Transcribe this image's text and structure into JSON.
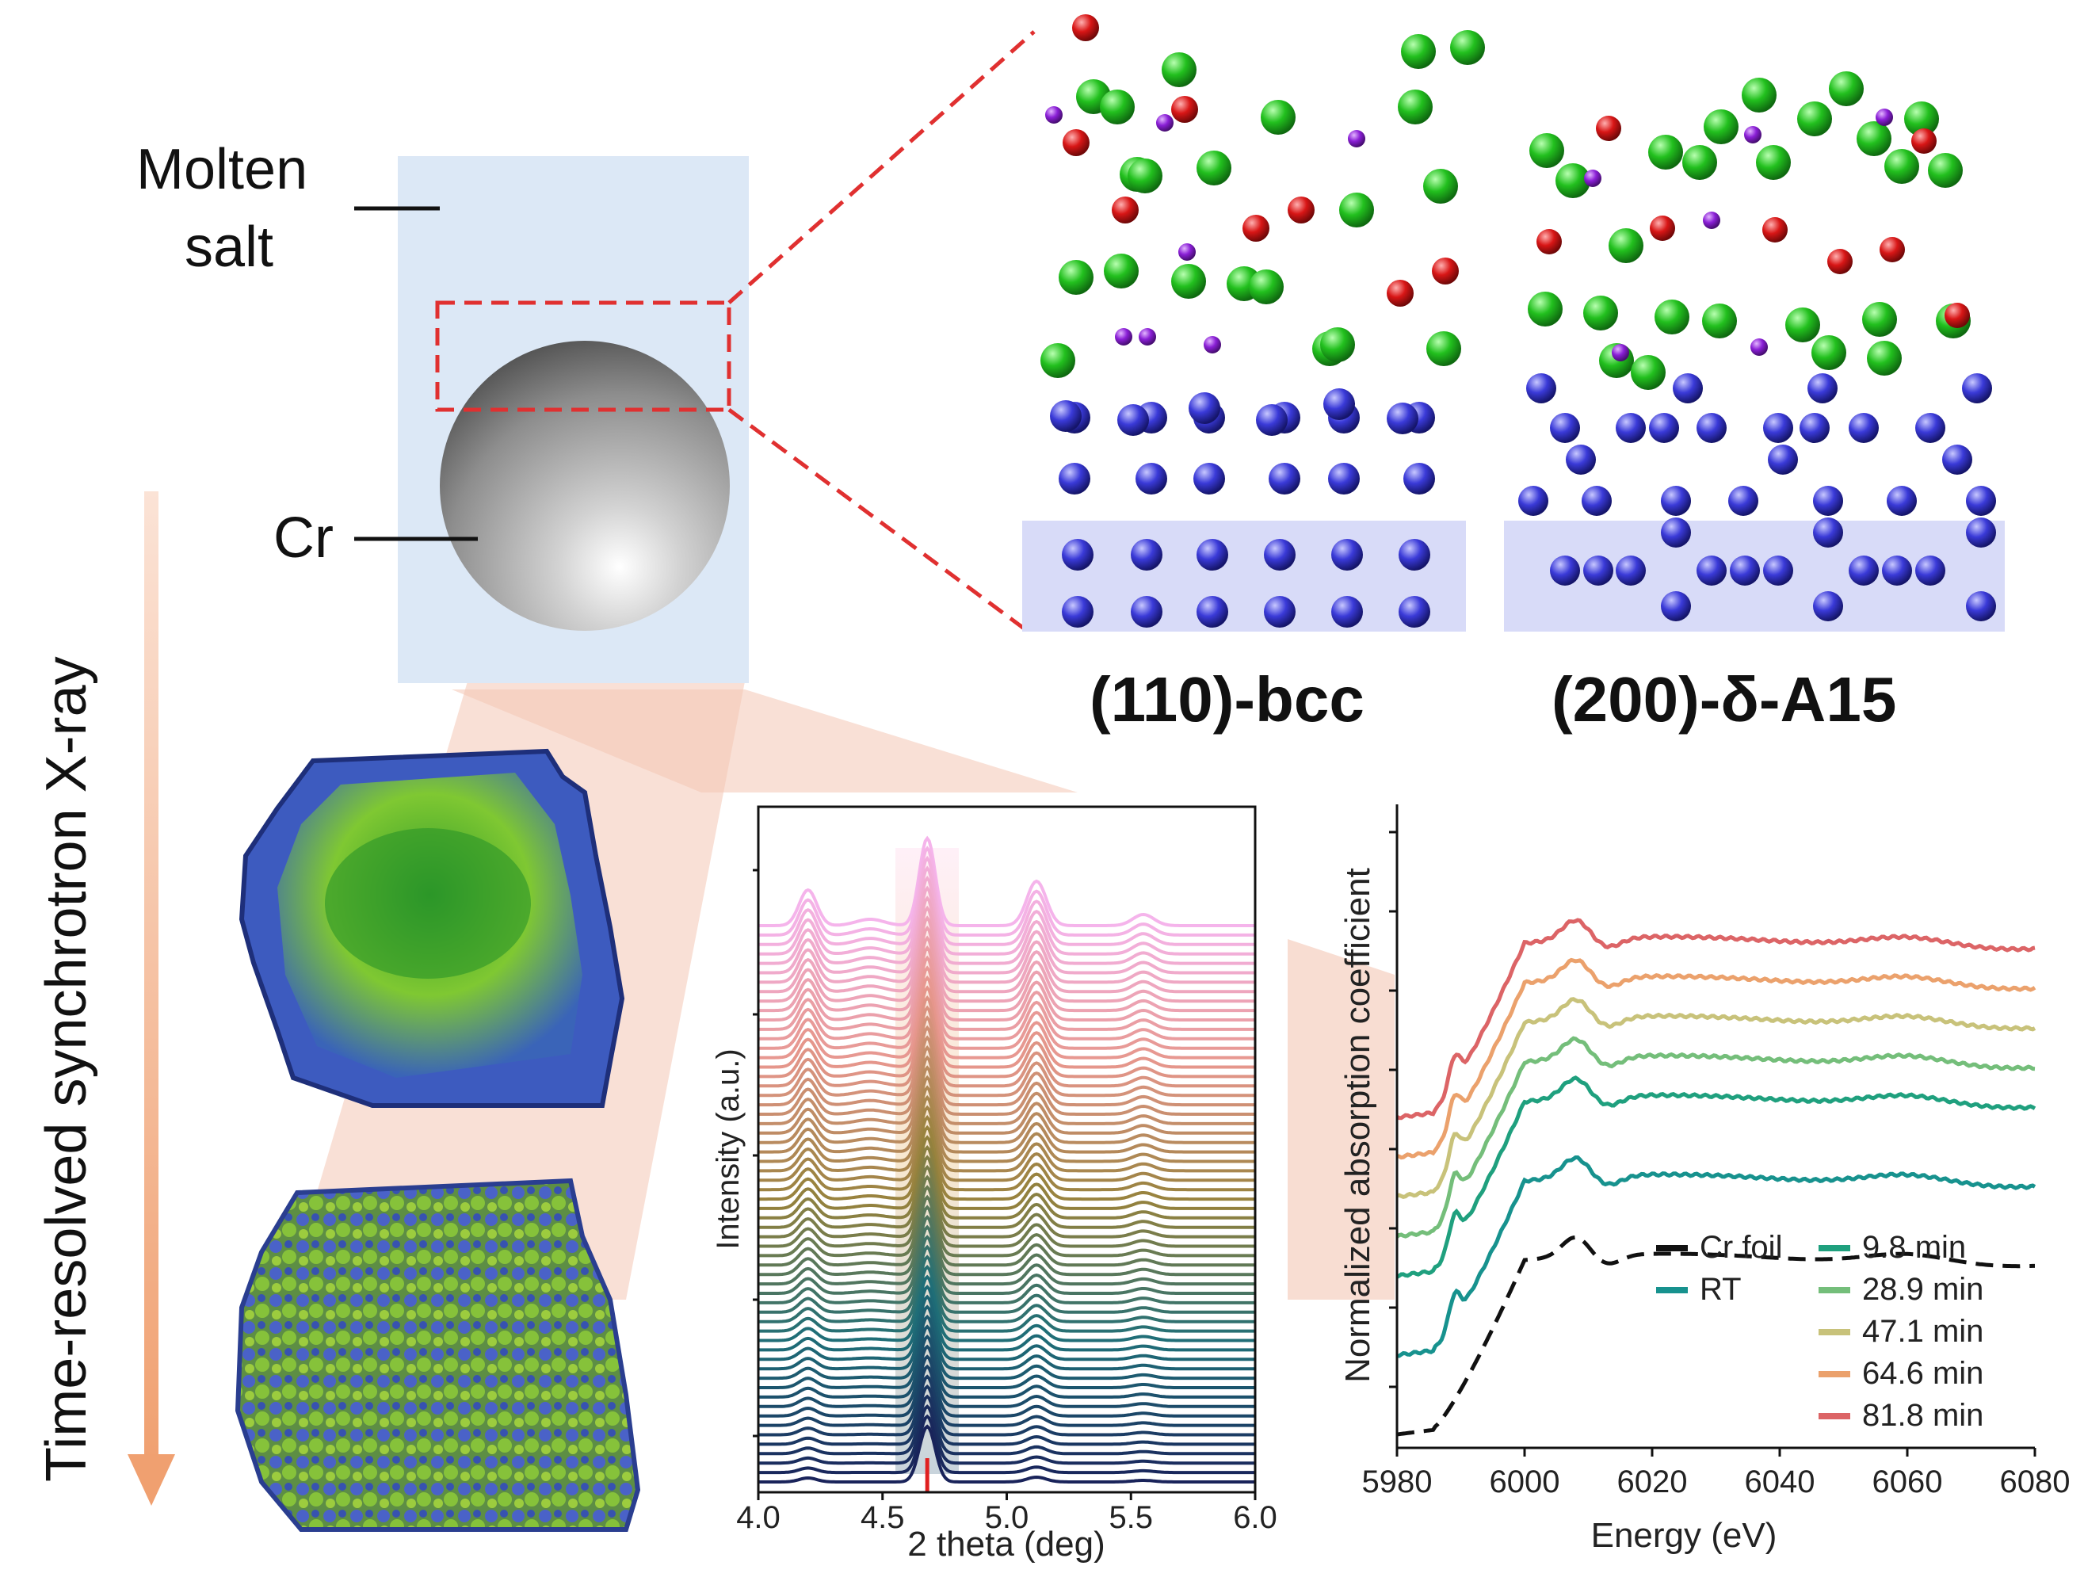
{
  "labels": {
    "molten_salt_line1": "Molten",
    "molten_salt_line2": "salt",
    "cr": "Cr",
    "timeline": "Time-resolved synchrotron X-ray",
    "structure_left": "(110)-bcc",
    "structure_right": "(200)-δ-A15"
  },
  "colors": {
    "cl_atom": "#22c01e",
    "k_atom": "#d81616",
    "na_atom": "#8a1fd6",
    "cr_atom": "#3a3ad8",
    "substrate_band": "#d8dbf8",
    "salt_box": "#dce8f6",
    "dashed": "#e03030",
    "arrow": "#f0a070",
    "fan": "#f4c6b4"
  },
  "chart_data": [
    {
      "type": "line",
      "title": "",
      "xlabel": "2 theta (deg)",
      "ylabel": "Intensity (a.u.)",
      "xlim": [
        4.0,
        6.0
      ],
      "xticks": [
        "4.0",
        "4.5",
        "5.0",
        "5.5",
        "6.0"
      ],
      "n_stacked_patterns": 60,
      "peaks_2theta": [
        4.2,
        4.68,
        5.12,
        5.55
      ],
      "marker_2theta": 4.68,
      "colormap": "dark blue (first) to pink (last)"
    },
    {
      "type": "line",
      "title": "",
      "xlabel": "Energy (eV)",
      "ylabel": "Normalized absorption coefficient",
      "xlim": [
        5980,
        6080
      ],
      "xticks": [
        "5980",
        "6000",
        "6020",
        "6040",
        "6060",
        "6080"
      ],
      "series": [
        {
          "name": "Cr foil",
          "color": "#111111",
          "style": "dashed",
          "offset": 0.0
        },
        {
          "name": "RT",
          "color": "#17928e",
          "style": "solid",
          "offset": 1.0
        },
        {
          "name": "9.8 min",
          "color": "#1fa07e",
          "style": "solid",
          "offset": 2.0
        },
        {
          "name": "28.9 min",
          "color": "#74be7a",
          "style": "solid",
          "offset": 2.5
        },
        {
          "name": "47.1 min",
          "color": "#c8c27a",
          "style": "solid",
          "offset": 3.0
        },
        {
          "name": "64.6 min",
          "color": "#eba16c",
          "style": "solid",
          "offset": 3.5
        },
        {
          "name": "81.8 min",
          "color": "#dc6466",
          "style": "solid",
          "offset": 4.0
        }
      ]
    }
  ]
}
